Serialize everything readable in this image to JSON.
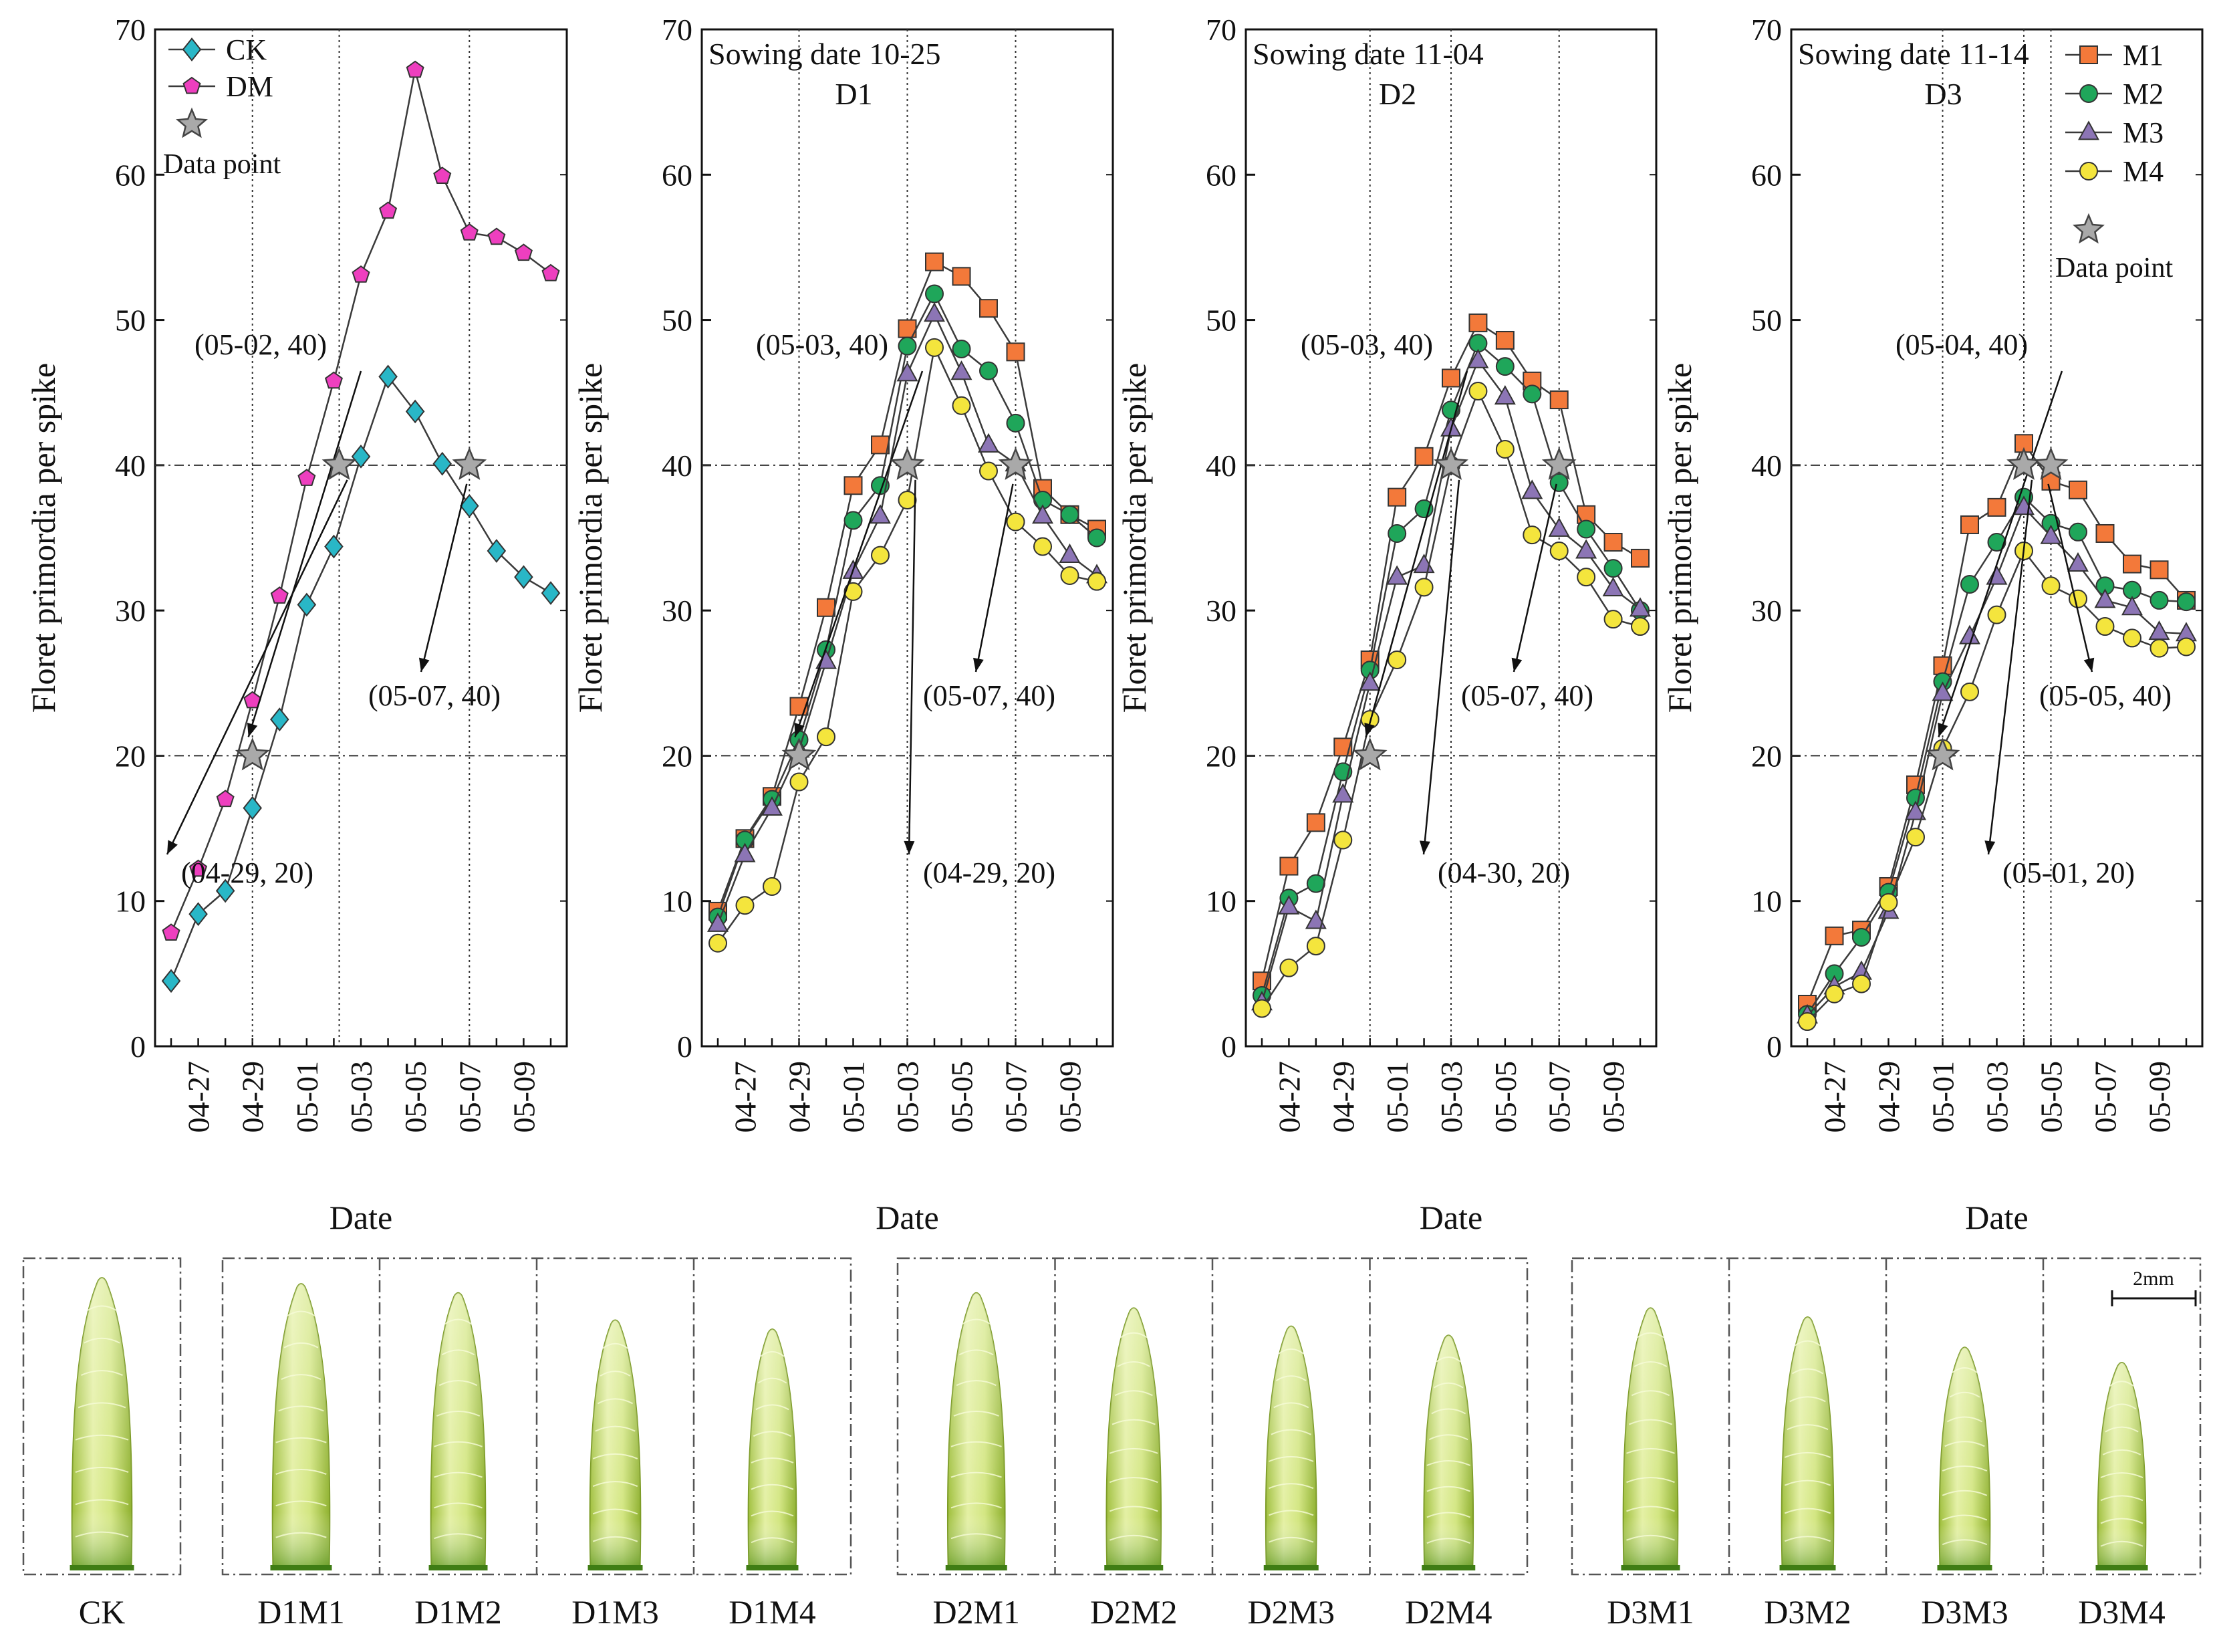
{
  "x_dates": [
    "04-26",
    "04-27",
    "04-28",
    "04-29",
    "04-30",
    "05-01",
    "05-02",
    "05-03",
    "05-04",
    "05-05",
    "05-06",
    "05-07",
    "05-08",
    "05-09",
    "05-10"
  ],
  "x_tick_labels": [
    "04-27",
    "04-29",
    "05-01",
    "05-03",
    "05-05",
    "05-07",
    "05-09"
  ],
  "y_ticks": [
    "0",
    "10",
    "20",
    "30",
    "40",
    "50",
    "60",
    "70"
  ],
  "xlabel": "Date",
  "ylabel": "Floret primordia per spike",
  "colors": {
    "CK": "#29b7c7",
    "DM": "#ee3fbf",
    "M1": "#f3793a",
    "M2": "#1fa65a",
    "M3": "#8c75b5",
    "M4": "#f4e53d",
    "star": "#a9a9a9"
  },
  "legend_point_label": "Data point",
  "chart_data": [
    {
      "type": "line",
      "title": "",
      "subtitle": "",
      "xlabel": "Date",
      "ylabel": "Floret primordia per spike",
      "ylim": [
        0,
        70
      ],
      "legend": "top-left",
      "series": [
        {
          "name": "CK",
          "marker": "diamond",
          "color": "#29b7c7",
          "values": [
            4.5,
            9.1,
            10.7,
            16.4,
            22.5,
            30.4,
            34.4,
            40.6,
            46.1,
            43.7,
            40.1,
            37.2,
            34.1,
            32.3,
            31.2
          ]
        },
        {
          "name": "DM",
          "marker": "pentagon",
          "color": "#ee3fbf",
          "values": [
            7.8,
            12.2,
            17.0,
            23.8,
            31.0,
            39.1,
            45.8,
            53.1,
            57.5,
            67.2,
            59.9,
            56.0,
            55.7,
            54.6,
            53.2
          ]
        }
      ],
      "points": [
        {
          "x": 3,
          "y": 20
        },
        {
          "x": 6.2,
          "y": 40
        },
        {
          "x": 11,
          "y": 40
        }
      ],
      "annotations": [
        "(05-02, 40)",
        "(04-29, 20)",
        "(05-07, 40)"
      ],
      "vlines": [
        3,
        6.2,
        11
      ],
      "hlines": [
        20,
        40
      ]
    },
    {
      "type": "line",
      "title": "Sowing date 10-25",
      "subtitle": "D1",
      "xlabel": "Date",
      "ylabel": "Floret primordia per spike",
      "ylim": [
        0,
        70
      ],
      "series": [
        {
          "name": "M1",
          "marker": "square",
          "color": "#f3793a",
          "values": [
            9.3,
            14.3,
            17.2,
            23.4,
            30.2,
            38.6,
            41.4,
            49.4,
            54.0,
            53.0,
            50.8,
            47.8,
            38.4,
            36.6,
            35.6
          ]
        },
        {
          "name": "M2",
          "marker": "circle",
          "color": "#1fa65a",
          "values": [
            8.9,
            14.2,
            17.0,
            21.1,
            27.3,
            36.2,
            38.6,
            48.2,
            51.8,
            48.0,
            46.5,
            42.9,
            37.6,
            36.6,
            35.0
          ]
        },
        {
          "name": "M3",
          "marker": "triangle",
          "color": "#8c75b5",
          "values": [
            8.4,
            13.2,
            16.4,
            20.4,
            26.5,
            32.7,
            36.5,
            46.3,
            50.4,
            46.4,
            41.4,
            40.1,
            36.5,
            33.8,
            32.4
          ]
        },
        {
          "name": "M4",
          "marker": "circle",
          "color": "#f4e53d",
          "values": [
            7.1,
            9.7,
            11.0,
            18.2,
            21.3,
            31.3,
            33.8,
            37.6,
            48.1,
            44.1,
            39.6,
            36.1,
            34.4,
            32.4,
            32.0
          ]
        }
      ],
      "points": [
        {
          "x": 3,
          "y": 20
        },
        {
          "x": 7,
          "y": 40
        },
        {
          "x": 11,
          "y": 40
        }
      ],
      "annotations": [
        "(05-03, 40)",
        "(04-29, 20)",
        "(05-07, 40)"
      ],
      "vlines": [
        3,
        7,
        11
      ],
      "hlines": [
        20,
        40
      ]
    },
    {
      "type": "line",
      "title": "Sowing date 11-04",
      "subtitle": "D2",
      "xlabel": "Date",
      "ylabel": "Floret primordia per spike",
      "ylim": [
        0,
        70
      ],
      "series": [
        {
          "name": "M1",
          "marker": "square",
          "color": "#f3793a",
          "values": [
            4.5,
            12.4,
            15.4,
            20.6,
            26.6,
            37.8,
            40.6,
            46.0,
            49.8,
            48.6,
            45.8,
            44.5,
            36.6,
            34.7,
            33.6
          ]
        },
        {
          "name": "M2",
          "marker": "circle",
          "color": "#1fa65a",
          "values": [
            3.5,
            10.2,
            11.2,
            18.9,
            25.9,
            35.3,
            37.0,
            43.8,
            48.4,
            46.8,
            44.9,
            38.8,
            35.6,
            32.9,
            30.0
          ]
        },
        {
          "name": "M3",
          "marker": "triangle",
          "color": "#8c75b5",
          "values": [
            3.0,
            9.6,
            8.6,
            17.3,
            25.0,
            32.3,
            33.1,
            42.5,
            47.2,
            44.7,
            38.2,
            35.6,
            34.1,
            31.5,
            30.1
          ]
        },
        {
          "name": "M4",
          "marker": "circle",
          "color": "#f4e53d",
          "values": [
            2.6,
            5.4,
            6.9,
            14.2,
            22.5,
            26.6,
            31.6,
            40.0,
            45.1,
            41.1,
            35.2,
            34.1,
            32.3,
            29.4,
            28.9
          ]
        }
      ],
      "points": [
        {
          "x": 4,
          "y": 20
        },
        {
          "x": 7,
          "y": 40
        },
        {
          "x": 11,
          "y": 40
        }
      ],
      "annotations": [
        "(05-03, 40)",
        "(04-30, 20)",
        "(05-07, 40)"
      ],
      "vlines": [
        4,
        7,
        11
      ],
      "hlines": [
        20,
        40
      ]
    },
    {
      "type": "line",
      "title": "Sowing date 11-14",
      "subtitle": "D3",
      "xlabel": "Date",
      "ylabel": "Floret primordia per spike",
      "ylim": [
        0,
        70
      ],
      "legend": "top-right",
      "series": [
        {
          "name": "M1",
          "marker": "square",
          "color": "#f3793a",
          "values": [
            2.9,
            7.6,
            8.0,
            11.0,
            18.0,
            26.2,
            35.9,
            37.1,
            41.5,
            38.9,
            38.3,
            35.3,
            33.2,
            32.8,
            30.7
          ]
        },
        {
          "name": "M2",
          "marker": "circle",
          "color": "#1fa65a",
          "values": [
            2.2,
            5.0,
            7.5,
            10.6,
            17.1,
            25.1,
            31.8,
            34.7,
            37.8,
            36.0,
            35.4,
            31.7,
            31.4,
            30.7,
            30.6
          ]
        },
        {
          "name": "M3",
          "marker": "triangle",
          "color": "#8c75b5",
          "values": [
            2.1,
            4.1,
            5.1,
            9.3,
            16.1,
            24.3,
            28.2,
            32.3,
            37.1,
            35.1,
            33.2,
            30.7,
            30.2,
            28.5,
            28.4
          ]
        },
        {
          "name": "M4",
          "marker": "circle",
          "color": "#f4e53d",
          "values": [
            1.7,
            3.6,
            4.3,
            9.9,
            14.4,
            20.5,
            24.4,
            29.7,
            34.1,
            31.7,
            30.8,
            28.9,
            28.1,
            27.4,
            27.5
          ]
        }
      ],
      "points": [
        {
          "x": 5,
          "y": 20
        },
        {
          "x": 8,
          "y": 40
        },
        {
          "x": 9,
          "y": 40
        }
      ],
      "annotations": [
        "(05-04, 40)",
        "(05-01, 20)",
        "(05-05, 40)"
      ],
      "vlines": [
        5,
        8,
        9
      ],
      "hlines": [
        20,
        40
      ]
    }
  ],
  "spikes": {
    "labels": [
      "CK",
      "D1M1",
      "D1M2",
      "D1M3",
      "D1M4",
      "D2M1",
      "D2M2",
      "D2M3",
      "D2M4",
      "D3M1",
      "D3M2",
      "D3M3",
      "D3M4"
    ],
    "scale_label": "2mm"
  }
}
